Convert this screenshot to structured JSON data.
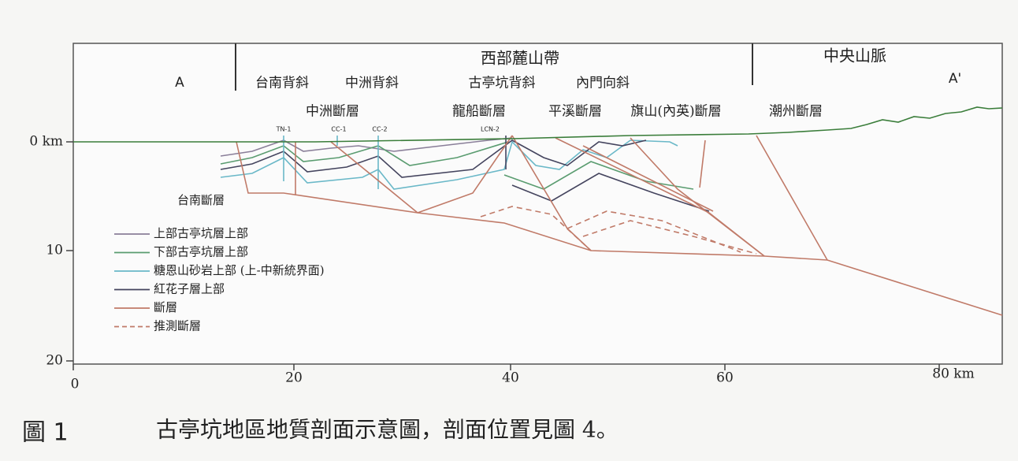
{
  "header": {
    "region_west": "西部麓山帶",
    "region_central": "中央山脈",
    "label_a": "A",
    "label_a_prime": "A'"
  },
  "structures": [
    {
      "label": "台南背斜",
      "color": "#4a4a6a"
    },
    {
      "label": "中洲背斜",
      "color": "#4a4a6a"
    },
    {
      "label": "古亭坑背斜",
      "color": "#c0504d"
    },
    {
      "label": "內門向斜",
      "color": "#4a4a6a"
    }
  ],
  "faults": [
    {
      "label": "中洲斷層",
      "color": "#333333"
    },
    {
      "label": "龍船斷層",
      "color": "#c0504d"
    },
    {
      "label": "平溪斷層",
      "color": "#333333"
    },
    {
      "label": "旗山(內英)斷層",
      "color": "#333333"
    },
    {
      "label": "潮州斷層",
      "color": "#333333"
    }
  ],
  "wells": [
    "TN-1",
    "CC-1",
    "CC-2",
    "LCN-2"
  ],
  "fault_label": "台南斷層",
  "legend": [
    {
      "label": "上部古亭坑層上部",
      "color": "#8a7f99",
      "dashed": false
    },
    {
      "label": "下部古亭坑層上部",
      "color": "#5a9c70",
      "dashed": false
    },
    {
      "label": "糖恩山砂岩上部 (上-中新統界面)",
      "color": "#6ab8c8",
      "dashed": false
    },
    {
      "label": "紅花子層上部",
      "color": "#44445e",
      "dashed": false
    },
    {
      "label": "斷層",
      "color": "#c07a68",
      "dashed": false
    },
    {
      "label": "推測斷層",
      "color": "#c07a68",
      "dashed": true
    }
  ],
  "y_axis_labels": [
    "0 km",
    "10",
    "20"
  ],
  "x_axis_labels": [
    "0",
    "20",
    "40",
    "60",
    "80 km"
  ],
  "caption": {
    "figure": "圖 1",
    "text": "古亭坑地區地質剖面示意圖，剖面位置見圖 4。"
  }
}
